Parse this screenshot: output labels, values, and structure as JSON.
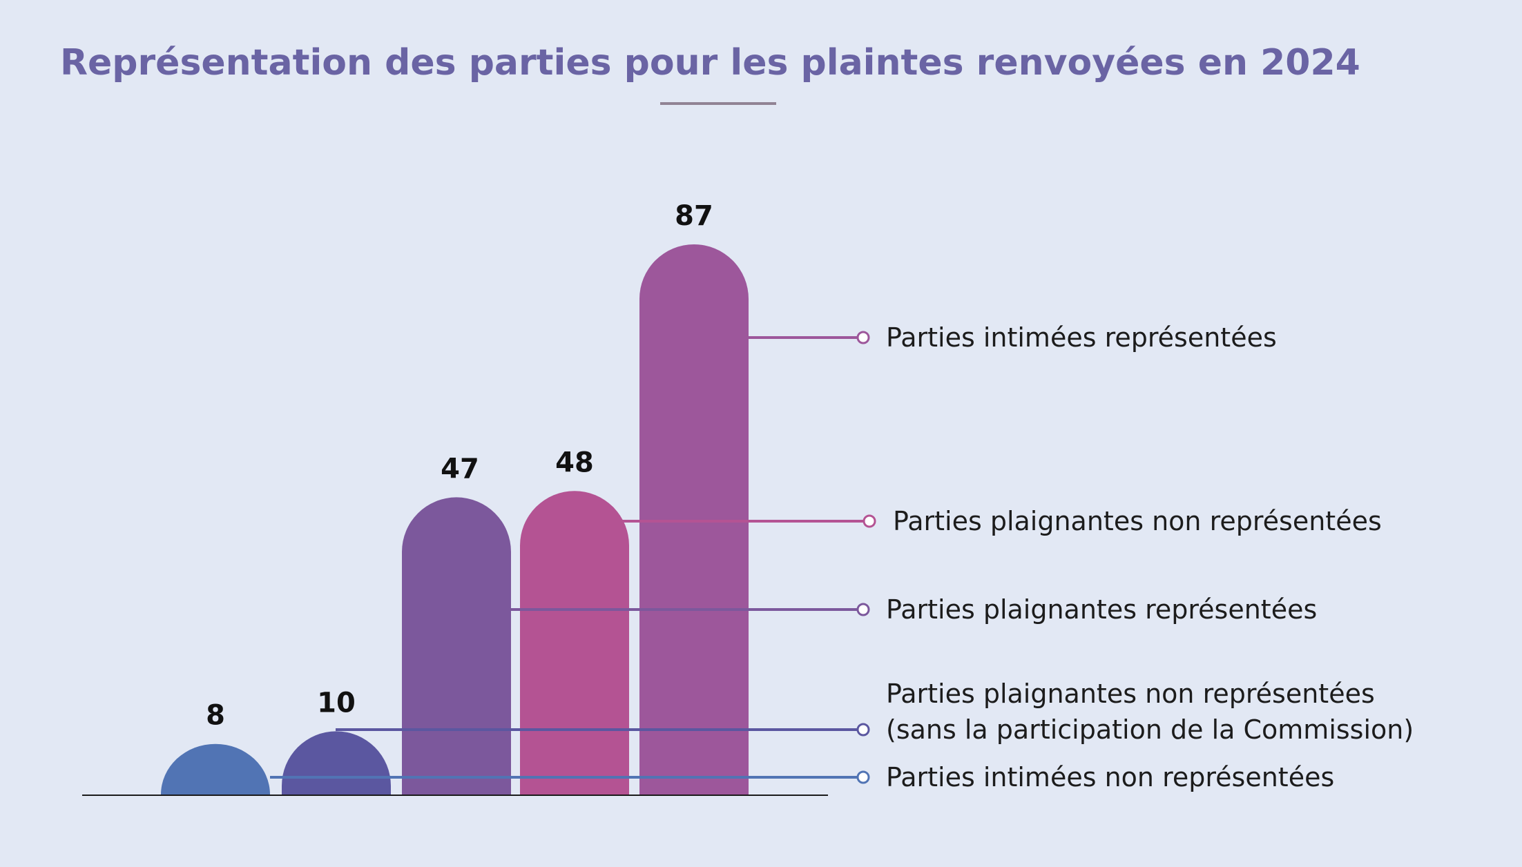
{
  "chart_data": {
    "type": "bar",
    "title": "Représentation des parties pour les plaintes renvoyées en 2024",
    "categories": [
      "Parties intimées non représentées",
      "Parties plaignantes non représentées (sans la participation de la Commission)",
      "Parties plaignantes représentées",
      "Parties plaignantes non représentées",
      "Parties intimées représentées"
    ],
    "values": [
      8,
      10,
      47,
      48,
      87
    ],
    "legend_lines": [
      [
        "Parties intimées non représentées"
      ],
      [
        "Parties plaignantes non représentées",
        "(sans la participation de la Commission)"
      ],
      [
        "Parties plaignantes représentées"
      ],
      [
        "Parties plaignantes non représentées"
      ],
      [
        "Parties intimées représentées"
      ]
    ],
    "colors": [
      "#5174b4",
      "#5b57a0",
      "#7c589c",
      "#b45393",
      "#9d579b"
    ],
    "data_labels": [
      "8",
      "10",
      "47",
      "48",
      "87"
    ],
    "legend_placement": "right",
    "grid": false,
    "ylim": [
      0,
      87
    ]
  },
  "colors": {
    "background": "#e2e8f4",
    "title": "#6a64a4",
    "divider": "#918394"
  }
}
